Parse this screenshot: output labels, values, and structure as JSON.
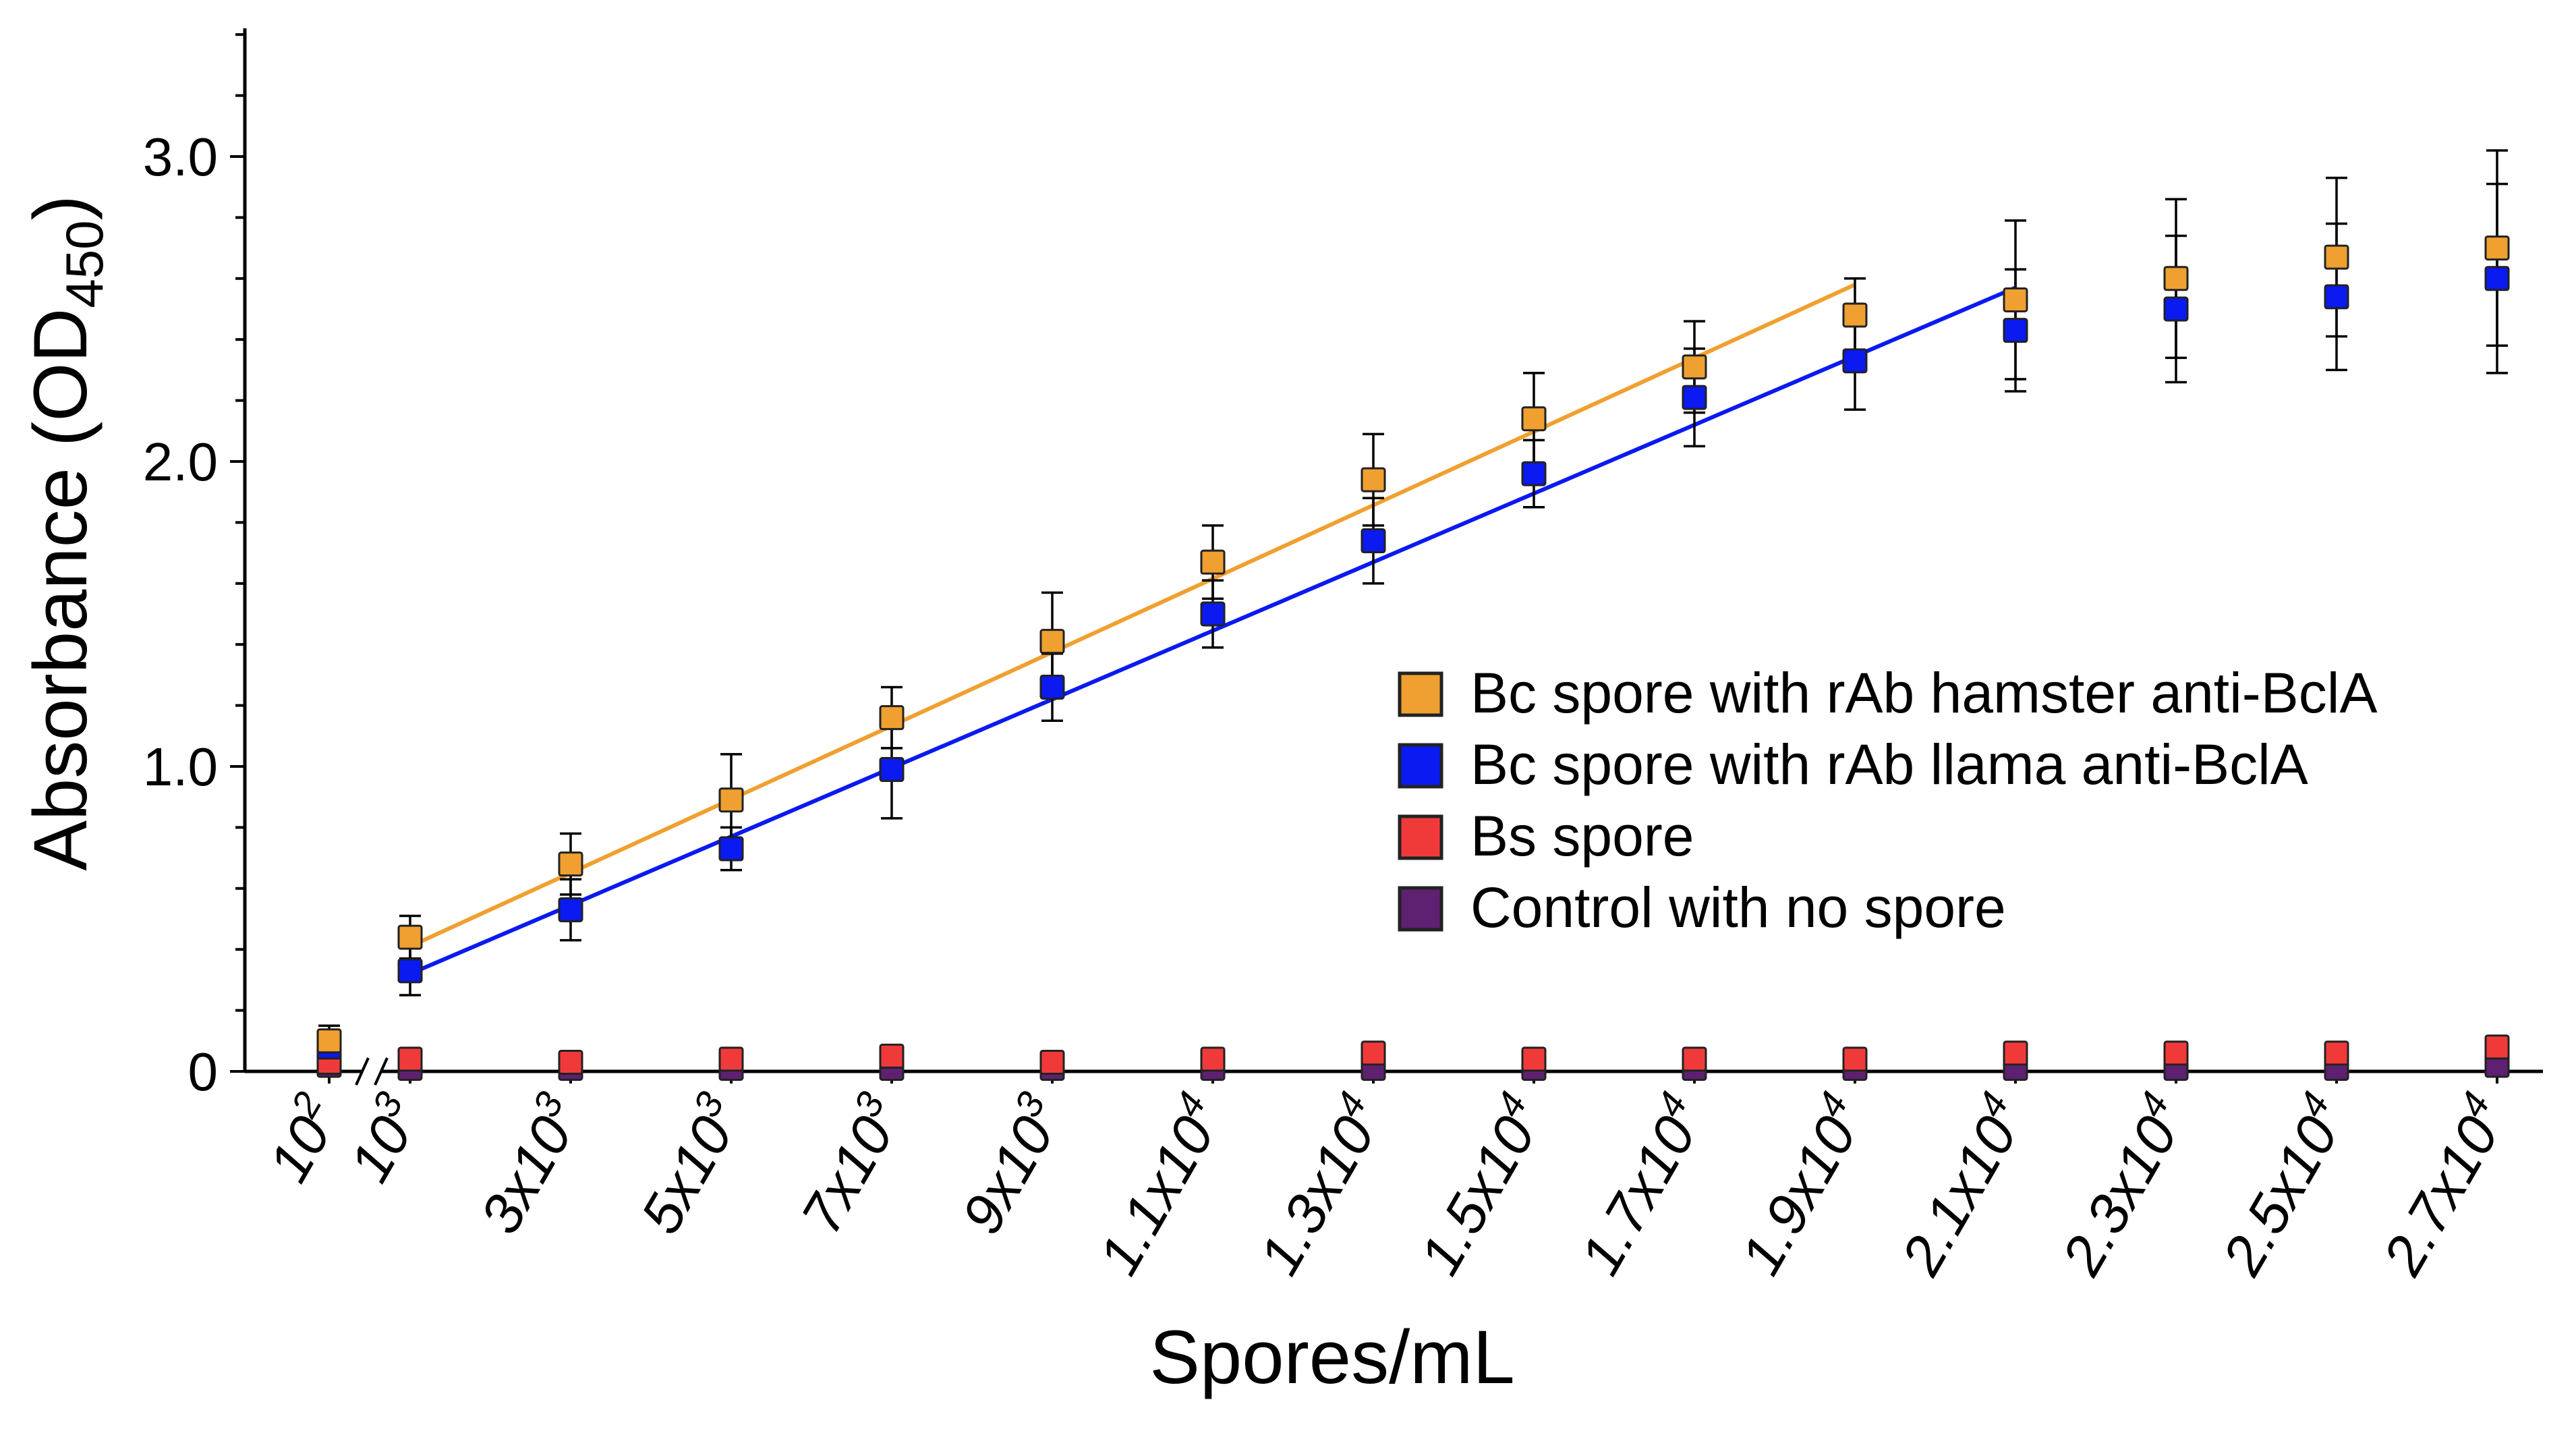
{
  "chart_data": {
    "type": "scatter",
    "title": "",
    "xlabel": "Spores/mL",
    "ylabel": "Absorbance (OD",
    "ylabel_sub": "450",
    "ylabel_close": ")",
    "ylim": [
      0,
      3.4
    ],
    "yticks": [
      {
        "value": 0,
        "label": "0"
      },
      {
        "value": 1.0,
        "label": "1.0"
      },
      {
        "value": 2.0,
        "label": "2.0"
      },
      {
        "value": 3.0,
        "label": "3.0"
      }
    ],
    "categories": [
      {
        "base": "10",
        "exp": "2"
      },
      {
        "base": "10",
        "exp": "3"
      },
      {
        "base": "3x10",
        "exp": "3"
      },
      {
        "base": "5x10",
        "exp": "3"
      },
      {
        "base": "7x10",
        "exp": "3"
      },
      {
        "base": "9x10",
        "exp": "3"
      },
      {
        "base": "1.1x10",
        "exp": "4"
      },
      {
        "base": "1.3x10",
        "exp": "4"
      },
      {
        "base": "1.5x10",
        "exp": "4"
      },
      {
        "base": "1.7x10",
        "exp": "4"
      },
      {
        "base": "1.9x10",
        "exp": "4"
      },
      {
        "base": "2.1x10",
        "exp": "4"
      },
      {
        "base": "2.3x10",
        "exp": "4"
      },
      {
        "base": "2.5x10",
        "exp": "4"
      },
      {
        "base": "2.7x10",
        "exp": "4"
      }
    ],
    "axis_break_after_index": 0,
    "series": [
      {
        "name": "Bc spore with rAb hamster anti-BclA",
        "color": "#F0A030",
        "values": [
          0.1,
          0.44,
          0.68,
          0.89,
          1.16,
          1.41,
          1.67,
          1.94,
          2.14,
          2.31,
          2.48,
          2.53,
          2.6,
          2.67,
          2.7
        ],
        "errors": [
          0.05,
          0.07,
          0.1,
          0.15,
          0.1,
          0.16,
          0.12,
          0.15,
          0.15,
          0.15,
          0.12,
          0.26,
          0.26,
          0.26,
          0.32
        ],
        "fit": {
          "from_index": 1,
          "to_index": 10,
          "start": 0.41,
          "end": 2.58
        }
      },
      {
        "name": "Bc spore with rAb llama anti-BclA",
        "color": "#0A1AF0",
        "values": [
          0.08,
          0.33,
          0.53,
          0.73,
          0.99,
          1.26,
          1.5,
          1.74,
          1.96,
          2.21,
          2.33,
          2.43,
          2.5,
          2.54,
          2.6
        ],
        "errors": [
          0.05,
          0.08,
          0.1,
          0.07,
          0.16,
          0.11,
          0.11,
          0.14,
          0.11,
          0.16,
          0.16,
          0.2,
          0.24,
          0.24,
          0.31
        ],
        "fit": {
          "from_index": 1,
          "to_index": 11,
          "start": 0.32,
          "end": 2.57
        }
      },
      {
        "name": "Bs spore",
        "color": "#F03A3A",
        "values": [
          0.03,
          0.04,
          0.03,
          0.04,
          0.05,
          0.03,
          0.04,
          0.06,
          0.04,
          0.04,
          0.04,
          0.06,
          0.06,
          0.06,
          0.08
        ],
        "errors": [],
        "fit": null
      },
      {
        "name": "Control with no spore",
        "color": "#5E2070",
        "values": [
          0.02,
          0.01,
          0.01,
          0.01,
          0.01,
          0.01,
          0.01,
          0.01,
          0.01,
          0.01,
          0.01,
          0.01,
          0.01,
          0.01,
          0.02
        ],
        "errors": [],
        "fit": null
      }
    ],
    "legend_position": "center-right"
  }
}
